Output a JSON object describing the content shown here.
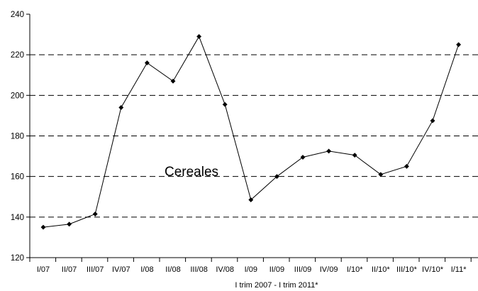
{
  "chart_data": {
    "type": "line",
    "title": "",
    "xlabel": "I trim 2007 - I trim 2011*",
    "ylabel": "",
    "annotation": "Cereales",
    "categories": [
      "I/07",
      "II/07",
      "III/07",
      "IV/07",
      "I/08",
      "II/08",
      "III/08",
      "IV/08",
      "I/09",
      "II/09",
      "III/09",
      "IV/09",
      "I/10*",
      "II/10*",
      "III/10*",
      "IV/10*",
      "I/11*"
    ],
    "series": [
      {
        "values": [
          135,
          136.5,
          141.5,
          194,
          216,
          207,
          229,
          195.5,
          148.5,
          160,
          169.5,
          172.5,
          170.5,
          161,
          165,
          187.5,
          225
        ]
      }
    ],
    "ylim": [
      120,
      240
    ],
    "yticks": [
      120,
      140,
      160,
      180,
      200,
      220,
      240
    ],
    "grid": "dashed horizontal",
    "legend": "none",
    "colors": {
      "line": "#000000",
      "grid": "#000000",
      "background": "#ffffff"
    }
  }
}
